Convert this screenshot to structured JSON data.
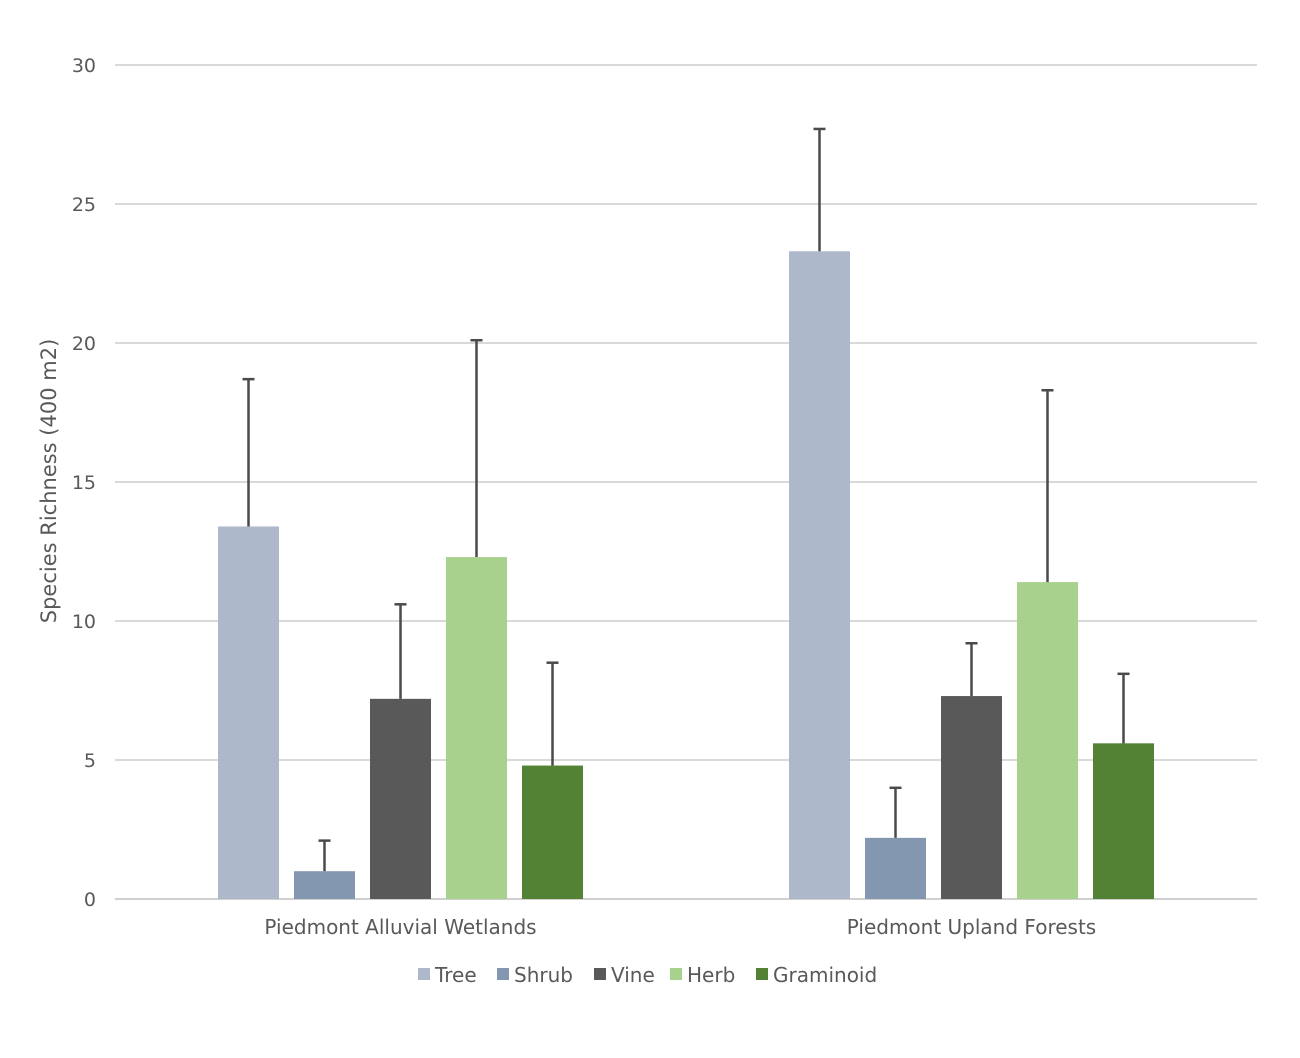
{
  "chart_data": {
    "type": "bar",
    "title": "",
    "xlabel": "",
    "ylabel": "Species Richness (400 m2)",
    "ylim": [
      0,
      30
    ],
    "yticks": [
      0,
      5,
      10,
      15,
      20,
      25,
      30
    ],
    "grid": true,
    "legend_position": "bottom",
    "categories": [
      "Piedmont Alluvial Wetlands",
      "Piedmont Upland Forests"
    ],
    "series": [
      {
        "name": "Tree",
        "color": "#adb9ca",
        "values": [
          13.4,
          23.3
        ],
        "error": [
          5.3,
          4.4
        ]
      },
      {
        "name": "Shrub",
        "color": "#8497b0",
        "values": [
          1.0,
          2.2
        ],
        "error": [
          1.1,
          1.8
        ]
      },
      {
        "name": "Vine",
        "color": "#595959",
        "values": [
          7.2,
          7.3
        ],
        "error": [
          3.4,
          1.9
        ]
      },
      {
        "name": "Herb",
        "color": "#a9d18e",
        "values": [
          12.3,
          11.4
        ],
        "error": [
          7.8,
          6.9
        ]
      },
      {
        "name": "Graminoid",
        "color": "#548235",
        "values": [
          4.8,
          5.6
        ],
        "error": [
          3.7,
          2.5
        ]
      }
    ]
  }
}
